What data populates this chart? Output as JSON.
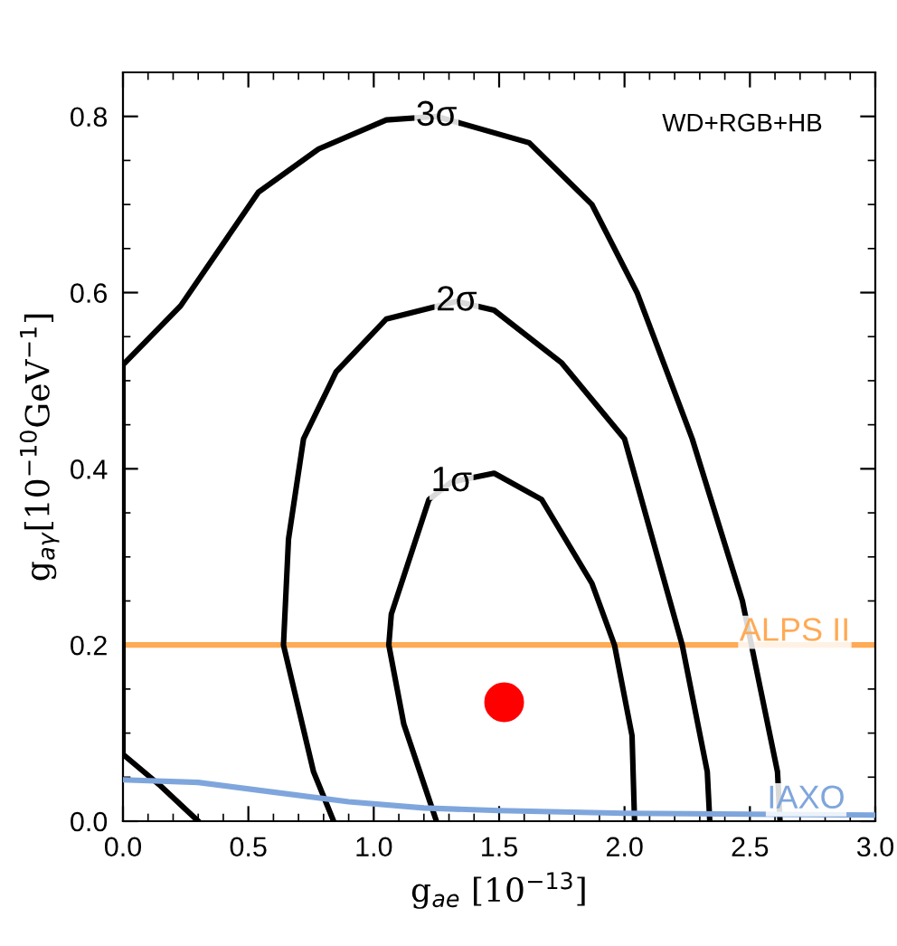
{
  "chart_data": {
    "type": "line",
    "xlabel": "g$_{ae}$ [10$^{−13}$]",
    "ylabel": "g$_{aγ}$[10$^{−10}$GeV$^{−1}$]",
    "xlim": [
      0,
      3
    ],
    "ylim": [
      0,
      0.85
    ],
    "xticks": [
      {
        "value": 0,
        "label": "0.0"
      },
      {
        "value": 0.5,
        "label": "0.5"
      },
      {
        "value": 1,
        "label": "1.0"
      },
      {
        "value": 1.5,
        "label": "1.5"
      },
      {
        "value": 2,
        "label": "2.0"
      },
      {
        "value": 2.5,
        "label": "2.5"
      },
      {
        "value": 3,
        "label": "3.0"
      }
    ],
    "yticks": [
      {
        "value": 0,
        "label": "0.0"
      },
      {
        "value": 0.2,
        "label": "0.2"
      },
      {
        "value": 0.4,
        "label": "0.4"
      },
      {
        "value": 0.6,
        "label": "0.6"
      },
      {
        "value": 0.8,
        "label": "0.8"
      }
    ],
    "grid": false,
    "legend": false,
    "marker": "none",
    "line_style": "solid",
    "series": [
      {
        "color": "#000000",
        "x": [
          1.25,
          1.12,
          1.06,
          1.07,
          1.22,
          1.31,
          1.48,
          1.67,
          1.87,
          1.96,
          2.03,
          2.04
        ],
        "values": [
          0,
          0.11,
          0.2,
          0.235,
          0.365,
          0.385,
          0.395,
          0.365,
          0.27,
          0.2,
          0.097,
          0
        ]
      },
      {
        "color": "#000000",
        "x": [
          0.84,
          0.76,
          0.64,
          0.66,
          0.72,
          0.85,
          1.05,
          1.33,
          1.48,
          1.75,
          2.0,
          2.23,
          2.33,
          2.34
        ],
        "values": [
          0,
          0.056,
          0.2,
          0.32,
          0.434,
          0.51,
          0.57,
          0.59,
          0.58,
          0.52,
          0.434,
          0.2,
          0.056,
          0
        ]
      },
      {
        "color": "#000000",
        "x": [
          0.3,
          0.15,
          0,
          0,
          0.23,
          0.54,
          0.78,
          1.05,
          1.25,
          1.62,
          1.87,
          2.05,
          2.27,
          2.47,
          2.61,
          2.62
        ],
        "values": [
          0,
          0.04,
          0.076,
          0.518,
          0.585,
          0.714,
          0.763,
          0.796,
          0.8,
          0.77,
          0.7,
          0.6,
          0.434,
          0.25,
          0.056,
          0
        ]
      },
      {
        "name": "IAXO",
        "color": "#7fa6dc",
        "x": [
          0,
          0.3,
          0.6,
          0.9,
          1.2,
          1.5,
          2.0,
          2.5,
          3.0
        ],
        "values": [
          0.047,
          0.044,
          0.033,
          0.022,
          0.015,
          0.012,
          0.009,
          0.008,
          0.007
        ]
      },
      {
        "type": "scatter",
        "color": "#ff0000",
        "marker": "circle",
        "x": [
          1.52
        ],
        "values": [
          0.135
        ]
      }
    ],
    "ref_lines": [
      {
        "axis": "y",
        "value": 0.2,
        "label": "ALPS II",
        "color": "#ffaa55"
      }
    ],
    "annotations": [
      {
        "text": "1σ",
        "x": 1.31,
        "y": 0.385
      },
      {
        "text": "2σ",
        "x": 1.33,
        "y": 0.59
      },
      {
        "text": "3σ",
        "x": 1.25,
        "y": 0.8
      },
      "WD+RGB+HB"
    ]
  }
}
